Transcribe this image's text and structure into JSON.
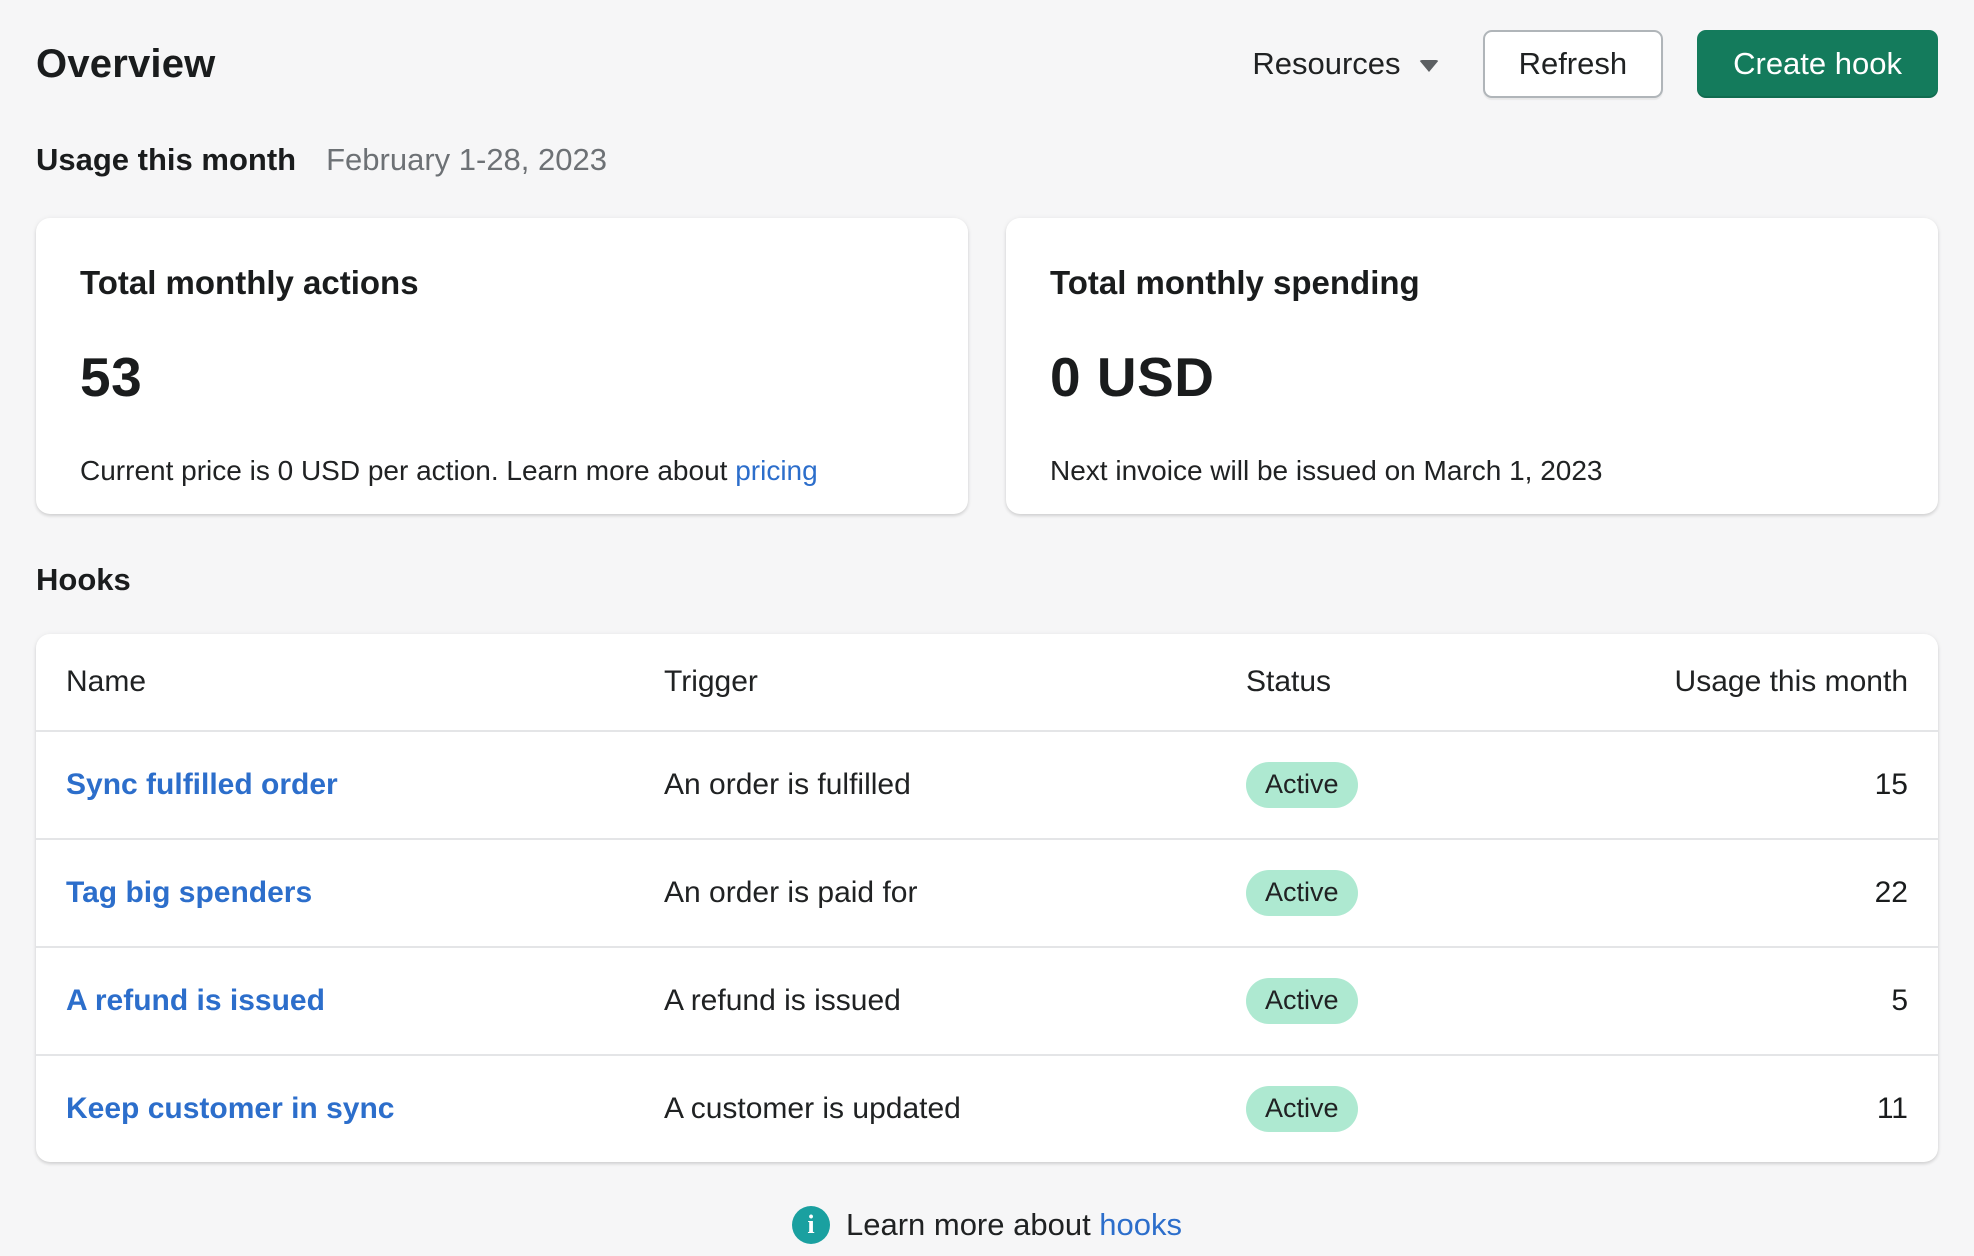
{
  "header": {
    "title": "Overview",
    "resources_label": "Resources",
    "refresh_label": "Refresh",
    "create_hook_label": "Create hook"
  },
  "usage_section": {
    "heading": "Usage this month",
    "date_range": "February 1-28, 2023"
  },
  "cards": {
    "actions": {
      "title": "Total monthly actions",
      "value": "53",
      "caption_prefix": "Current price is 0 USD per action. Learn more about ",
      "caption_link": "pricing"
    },
    "spending": {
      "title": "Total monthly spending",
      "value": "0 USD",
      "caption": "Next invoice will be issued on March 1, 2023"
    }
  },
  "hooks_section": {
    "heading": "Hooks",
    "table": {
      "columns": [
        "Name",
        "Trigger",
        "Status",
        "Usage this month"
      ],
      "rows": [
        {
          "name": "Sync fulfilled order",
          "trigger": "An order is fulfilled",
          "status": "Active",
          "usage": "15"
        },
        {
          "name": "Tag big spenders",
          "trigger": "An order is paid for",
          "status": "Active",
          "usage": "22"
        },
        {
          "name": "A refund is issued",
          "trigger": "A refund is issued",
          "status": "Active",
          "usage": "5"
        },
        {
          "name": "Keep customer in sync",
          "trigger": "A customer is updated",
          "status": "Active",
          "usage": "11"
        }
      ]
    },
    "footer": {
      "info_icon_glyph": "i",
      "text_prefix": "Learn more about ",
      "link": "hooks"
    }
  },
  "colors": {
    "page_background": "#F6F6F7",
    "primary_button_green": "#147B5C",
    "link_blue": "#2C6ECB",
    "badge_success_bg": "#AEE9D1",
    "info_icon_teal": "#1AA0A0",
    "secondary_text": "#6D7175"
  }
}
